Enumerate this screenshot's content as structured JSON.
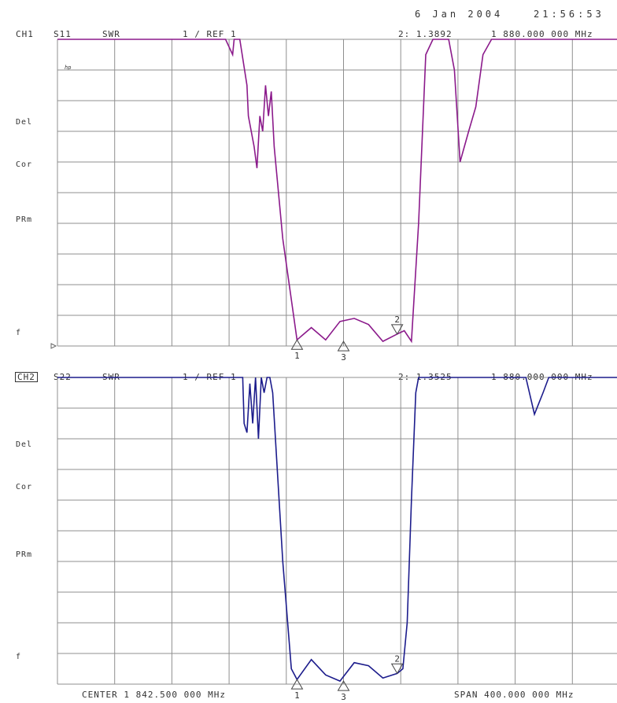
{
  "header": {
    "date": "6 Jan 2004",
    "time": "21:56:53"
  },
  "channels": [
    {
      "label": "CH1",
      "param": "S11",
      "format": "SWR",
      "scale": "1 / REF 1",
      "marker_readout": "2: 1.3892",
      "marker_freq": "1 880.000 000 MHz",
      "logo": "hp",
      "side_labels": [
        "Del",
        "Cor",
        "PRm",
        "f"
      ],
      "trace_color": "#8b1a8b"
    },
    {
      "label": "CH2",
      "param": "S22",
      "format": "SWR",
      "scale": "1 / REF 1",
      "marker_readout": "2: 1.3525",
      "marker_freq": "1 880.000 000 MHz",
      "side_labels": [
        "Del",
        "Cor",
        "PRm",
        "f"
      ],
      "trace_color": "#1c1c8c"
    }
  ],
  "footer": {
    "center": "CENTER 1 842.500 000 MHz",
    "span": "SPAN 400.000 000 MHz"
  },
  "chart_data": [
    {
      "type": "line",
      "channel": "CH1",
      "x_unit": "MHz",
      "xlim": [
        1642.5,
        2042.5
      ],
      "y_unit": "SWR",
      "ylim": [
        1,
        11
      ],
      "grid": true,
      "x": [
        1642.5,
        1760,
        1765,
        1766,
        1770,
        1775,
        1776,
        1780,
        1782,
        1784,
        1786,
        1788,
        1790,
        1792,
        1794,
        1800,
        1810,
        1820,
        1830,
        1840,
        1850,
        1860,
        1870,
        1880,
        1885,
        1890,
        1895,
        1900,
        1905,
        1910,
        1916,
        1920,
        1924,
        1930,
        1935,
        1940,
        1946,
        1950,
        2042.5
      ],
      "values": [
        11,
        11,
        10.5,
        11,
        11,
        9.5,
        8.5,
        7.5,
        6.8,
        8.5,
        8,
        9.5,
        8.5,
        9.3,
        7.5,
        4.5,
        1.2,
        1.6,
        1.2,
        1.8,
        1.9,
        1.7,
        1.15,
        1.39,
        1.5,
        1.15,
        5,
        10.5,
        11,
        11,
        11,
        10,
        7,
        8,
        8.8,
        10.5,
        11,
        11,
        11
      ],
      "markers": [
        {
          "label": "1",
          "x": 1810,
          "value": 1.2
        },
        {
          "label": "2",
          "x": 1880,
          "value": 1.3892
        },
        {
          "label": "3",
          "x": 1842.5,
          "value": 1.15
        }
      ]
    },
    {
      "type": "line",
      "channel": "CH2",
      "x_unit": "MHz",
      "xlim": [
        1642.5,
        2042.5
      ],
      "y_unit": "SWR",
      "ylim": [
        1,
        11
      ],
      "grid": true,
      "x": [
        1642.5,
        1772,
        1773,
        1775,
        1777,
        1779,
        1781,
        1783,
        1785,
        1787,
        1789,
        1791,
        1793,
        1800,
        1806,
        1810,
        1820,
        1830,
        1840,
        1850,
        1860,
        1870,
        1880,
        1884,
        1887,
        1890,
        1893,
        1895,
        1897,
        1900,
        1970,
        1976,
        1982,
        1986,
        2042.5
      ],
      "values": [
        11,
        11,
        9.5,
        9.2,
        10.8,
        9.5,
        11,
        9,
        11,
        10.5,
        11,
        11,
        10.5,
        5,
        1.5,
        1.15,
        1.8,
        1.3,
        1.1,
        1.7,
        1.6,
        1.2,
        1.35,
        1.5,
        3,
        7,
        10.5,
        11,
        11,
        11,
        11,
        9.8,
        10.5,
        11,
        11
      ],
      "markers": [
        {
          "label": "1",
          "x": 1810,
          "value": 1.15
        },
        {
          "label": "2",
          "x": 1880,
          "value": 1.3525
        },
        {
          "label": "3",
          "x": 1842.5,
          "value": 1.1
        }
      ]
    }
  ]
}
